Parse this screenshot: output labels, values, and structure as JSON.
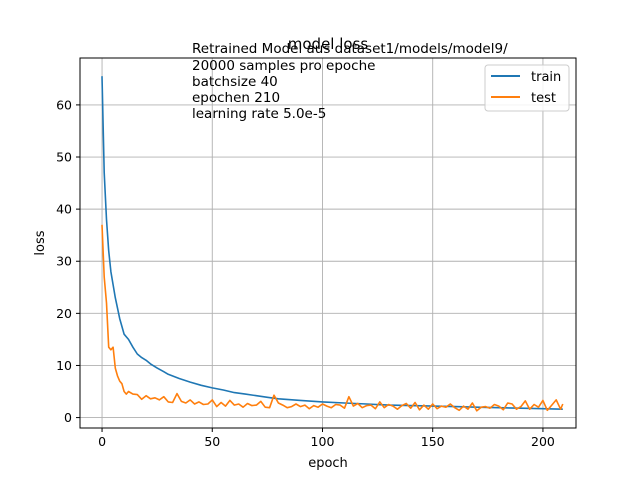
{
  "chart_data": {
    "type": "line",
    "title": "model loss",
    "xlabel": "epoch",
    "ylabel": "loss",
    "xlim": [
      -10,
      215
    ],
    "ylim": [
      -2,
      69
    ],
    "xticks": [
      0,
      50,
      100,
      150,
      200
    ],
    "yticks": [
      0,
      10,
      20,
      30,
      40,
      50,
      60
    ],
    "grid": true,
    "legend_position": "upper right",
    "annotation": [
      "Retrained Model aus dataset1/models/model9/",
      "20000 samples pro epoche",
      "batchsize 40",
      "epochen 210",
      "learning rate 5.0e-5"
    ],
    "series": [
      {
        "name": "train",
        "color": "#1f77b4",
        "x": [
          0,
          1,
          2,
          3,
          4,
          5,
          6,
          7,
          8,
          9,
          10,
          12,
          14,
          16,
          18,
          20,
          22,
          25,
          28,
          30,
          35,
          40,
          45,
          50,
          55,
          60,
          65,
          70,
          75,
          80,
          90,
          100,
          110,
          120,
          130,
          140,
          150,
          160,
          170,
          180,
          190,
          200,
          209
        ],
        "y": [
          65.5,
          47,
          38,
          32,
          28,
          25.5,
          23,
          21,
          19,
          17.5,
          16,
          15,
          13.5,
          12.2,
          11.5,
          11,
          10.3,
          9.5,
          8.8,
          8.3,
          7.5,
          6.8,
          6.2,
          5.7,
          5.3,
          4.8,
          4.5,
          4.2,
          3.9,
          3.6,
          3.3,
          3.0,
          2.8,
          2.6,
          2.4,
          2.3,
          2.2,
          2.1,
          2.0,
          1.9,
          1.8,
          1.7,
          1.6
        ]
      },
      {
        "name": "test",
        "color": "#ff7f0e",
        "x": [
          0,
          1,
          2,
          3,
          4,
          5,
          6,
          7,
          8,
          9,
          10,
          11,
          12,
          14,
          16,
          18,
          20,
          22,
          24,
          26,
          28,
          30,
          32,
          34,
          36,
          38,
          40,
          42,
          44,
          46,
          48,
          50,
          52,
          54,
          56,
          58,
          60,
          62,
          64,
          66,
          68,
          70,
          72,
          74,
          76,
          78,
          80,
          82,
          84,
          86,
          88,
          90,
          92,
          94,
          96,
          98,
          100,
          102,
          104,
          106,
          108,
          110,
          112,
          114,
          116,
          118,
          120,
          122,
          124,
          126,
          128,
          130,
          132,
          134,
          136,
          138,
          140,
          142,
          144,
          146,
          148,
          150,
          152,
          154,
          156,
          158,
          160,
          162,
          164,
          166,
          168,
          170,
          172,
          174,
          176,
          178,
          180,
          182,
          184,
          186,
          188,
          190,
          192,
          194,
          196,
          198,
          200,
          202,
          204,
          206,
          208,
          209
        ],
        "y": [
          37,
          27,
          22,
          13.5,
          13,
          13.5,
          9.5,
          8,
          7,
          6.5,
          5,
          4.5,
          5,
          4.5,
          4.4,
          3.5,
          4.2,
          3.6,
          3.8,
          3.4,
          4.0,
          3.0,
          2.9,
          4.6,
          3.1,
          2.8,
          3.4,
          2.6,
          3.0,
          2.5,
          2.6,
          3.4,
          2.1,
          2.9,
          2.2,
          3.3,
          2.4,
          2.6,
          2.0,
          2.7,
          2.3,
          2.4,
          3.1,
          2.0,
          1.9,
          4.3,
          2.8,
          2.4,
          1.9,
          2.1,
          2.6,
          2.1,
          2.4,
          1.7,
          2.3,
          2.0,
          2.6,
          2.2,
          1.9,
          2.5,
          2.4,
          1.8,
          4.0,
          2.2,
          2.7,
          1.9,
          2.3,
          2.4,
          1.7,
          3.0,
          1.9,
          2.5,
          2.2,
          1.6,
          2.3,
          2.7,
          1.8,
          2.9,
          1.5,
          2.4,
          1.6,
          2.6,
          1.7,
          2.2,
          2.0,
          2.6,
          1.9,
          1.4,
          2.2,
          1.6,
          2.8,
          1.3,
          2.0,
          2.1,
          1.8,
          2.5,
          2.2,
          1.5,
          2.8,
          2.6,
          1.6,
          2.1,
          3.2,
          1.6,
          2.5,
          2.0,
          3.3,
          1.4,
          2.4,
          3.4,
          1.6,
          2.6
        ]
      }
    ]
  }
}
